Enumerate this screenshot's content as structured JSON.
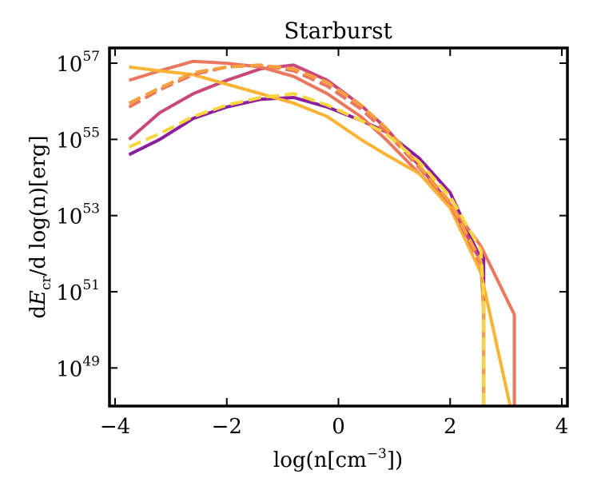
{
  "chart_data": {
    "type": "line",
    "title": "Starburst",
    "xlabel": "log(n[cm−3])",
    "ylabel": "dE_cr/d log(n)[erg]",
    "xlim": [
      -4.1,
      4.1
    ],
    "ylim_log10": [
      48.0,
      57.4
    ],
    "y_scale": "log",
    "x_ticks": [
      {
        "value": -4,
        "label": "−4"
      },
      {
        "value": -2,
        "label": "−2"
      },
      {
        "value": 0,
        "label": "0"
      },
      {
        "value": 2,
        "label": "2"
      },
      {
        "value": 4,
        "label": "4"
      }
    ],
    "y_ticks": [
      {
        "exponent": 49,
        "base": "10",
        "sup": "49"
      },
      {
        "exponent": 51,
        "base": "10",
        "sup": "51"
      },
      {
        "exponent": 53,
        "base": "10",
        "sup": "53"
      },
      {
        "exponent": 55,
        "base": "10",
        "sup": "55"
      },
      {
        "exponent": 57,
        "base": "10",
        "sup": "57"
      }
    ],
    "ylabel_parts": {
      "d1": "d",
      "E": "E",
      "cr": "cr",
      "rest": "/d log(n)[erg]"
    },
    "xlabel_parts": {
      "pre": "log(n[cm",
      "sup": "−3",
      "post": "])"
    },
    "grid": false,
    "series": [
      {
        "name": "solid-purple",
        "color": "#8b1e9e",
        "dash": "solid",
        "x": [
          -3.75,
          -3.2,
          -2.6,
          -2.0,
          -1.4,
          -0.8,
          -0.2,
          0.4,
          0.85,
          1.45,
          2.0,
          2.55,
          2.6,
          2.6
        ],
        "y": [
          54.6,
          55.0,
          55.55,
          55.85,
          56.05,
          56.1,
          55.85,
          55.5,
          55.2,
          54.5,
          53.6,
          51.85,
          52.0,
          47.5
        ]
      },
      {
        "name": "solid-magenta",
        "color": "#c9477a",
        "dash": "solid",
        "x": [
          -3.75,
          -3.2,
          -2.6,
          -2.0,
          -1.4,
          -0.8,
          -0.2,
          0.4,
          0.85,
          1.45,
          2.0,
          2.55,
          2.6
        ],
        "y": [
          55.0,
          55.7,
          56.2,
          56.55,
          56.85,
          56.95,
          56.55,
          55.9,
          55.3,
          54.3,
          53.3,
          51.8,
          50.5
        ]
      },
      {
        "name": "solid-coral",
        "color": "#ea785f",
        "dash": "solid",
        "x": [
          -3.75,
          -3.2,
          -2.6,
          -2.0,
          -1.4,
          -0.8,
          -0.2,
          0.4,
          0.85,
          1.45,
          2.0,
          2.55,
          3.15,
          3.15
        ],
        "y": [
          56.55,
          56.8,
          57.05,
          57.0,
          56.9,
          56.65,
          56.2,
          55.6,
          55.0,
          54.1,
          53.3,
          52.2,
          50.4,
          47.5
        ]
      },
      {
        "name": "solid-orange",
        "color": "#fbb335",
        "dash": "solid",
        "x": [
          -3.75,
          -3.2,
          -2.6,
          -2.0,
          -1.4,
          -0.8,
          -0.2,
          0.4,
          0.85,
          1.45,
          2.0,
          2.55,
          3.15
        ],
        "y": [
          56.9,
          56.8,
          56.7,
          56.45,
          56.2,
          55.95,
          55.6,
          55.0,
          54.6,
          54.1,
          53.2,
          51.5,
          47.5
        ]
      },
      {
        "name": "dashed-coral",
        "color": "#ea785f",
        "dash": "dashed",
        "x": [
          -3.75,
          -3.2,
          -2.6,
          -2.0,
          -1.4,
          -0.8,
          -0.2,
          0.4,
          0.85,
          1.45,
          2.0,
          2.55,
          2.6
        ],
        "y": [
          55.85,
          56.3,
          56.7,
          56.9,
          56.95,
          56.8,
          56.4,
          55.8,
          55.2,
          54.25,
          53.3,
          51.7,
          50.5
        ]
      },
      {
        "name": "dashed-orange-upper",
        "color": "#f6a13e",
        "dash": "dashed",
        "x": [
          -3.75,
          -3.2,
          -2.6,
          -2.0,
          -1.4,
          -0.8,
          -0.2,
          0.4,
          0.85,
          1.45,
          2.0,
          2.55,
          2.6,
          2.6
        ],
        "y": [
          55.95,
          56.35,
          56.75,
          56.9,
          56.95,
          56.85,
          56.5,
          55.9,
          55.3,
          54.3,
          53.35,
          51.8,
          50.5,
          47.5
        ]
      },
      {
        "name": "dashed-yellow-lower",
        "color": "#f8d73e",
        "dash": "dashed",
        "x": [
          -3.75,
          -3.2,
          -2.6,
          -2.0,
          -1.4,
          -0.8,
          -0.2,
          0.4,
          0.85,
          1.45,
          2.0,
          2.55,
          2.6,
          2.6
        ],
        "y": [
          54.8,
          55.15,
          55.6,
          55.9,
          56.1,
          56.2,
          55.9,
          55.5,
          55.15,
          54.4,
          53.5,
          52.1,
          50.8,
          47.5
        ]
      }
    ]
  }
}
